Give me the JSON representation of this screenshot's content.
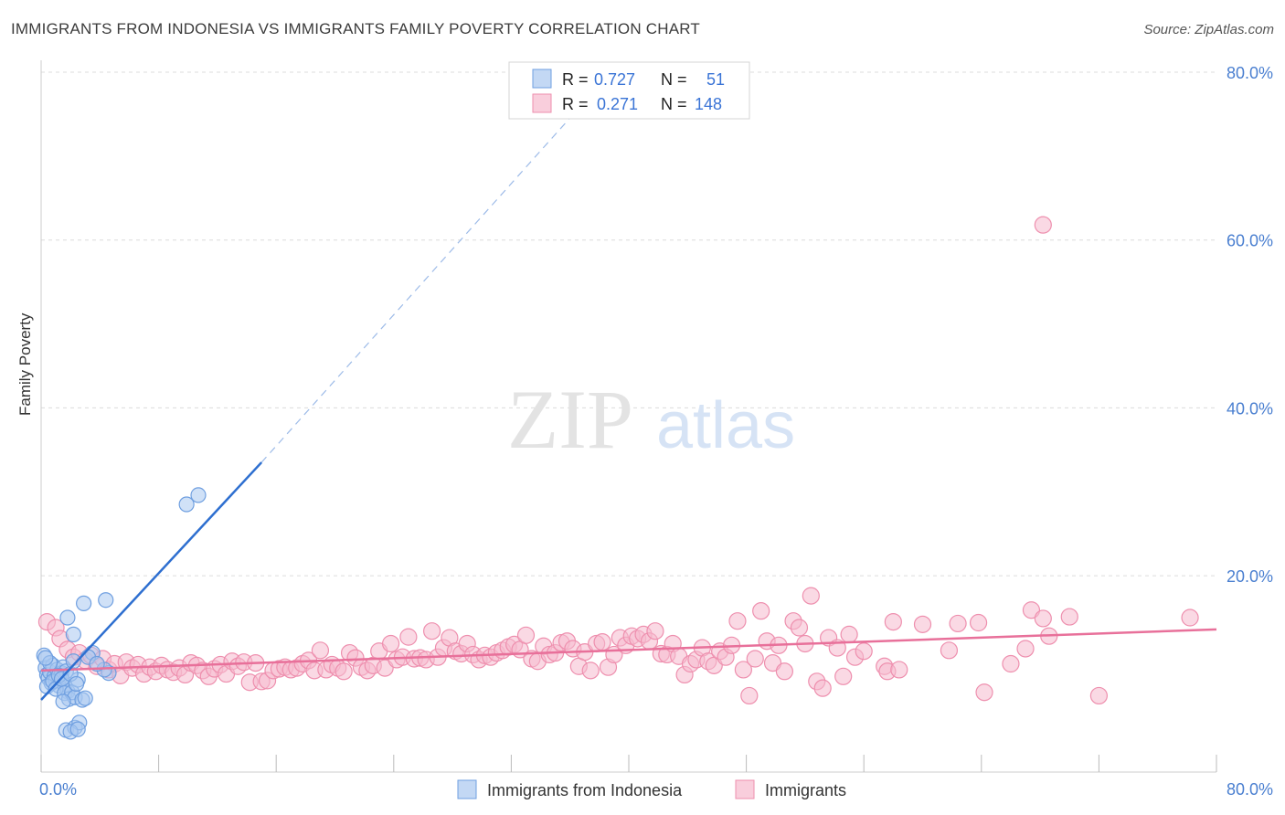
{
  "header": {
    "title": "IMMIGRANTS FROM INDONESIA VS IMMIGRANTS FAMILY POVERTY CORRELATION CHART",
    "source": "Source: ZipAtlas.com"
  },
  "watermark": {
    "zip": "ZIP",
    "atlas": "atlas"
  },
  "colors": {
    "blue_fill": "#a9c8f0",
    "blue_stroke": "#6f9fe0",
    "blue_line": "#2e6fd0",
    "pink_fill": "#f6b9cd",
    "pink_stroke": "#ee8fae",
    "pink_line": "#e8709a",
    "tick_label": "#4a7fd0",
    "grid": "#dcdcdc"
  },
  "legend": {
    "rows": [
      {
        "r_label": "R = ",
        "r_value": "0.727",
        "n_label": "N = ",
        "n_value": "51"
      },
      {
        "r_label": "R = ",
        "r_value": "0.271",
        "n_label": "N = ",
        "n_value": "148"
      }
    ]
  },
  "bottom_legend": [
    "Immigrants from Indonesia",
    "Immigrants"
  ],
  "chart_data": {
    "type": "scatter",
    "title": "IMMIGRANTS FROM INDONESIA VS IMMIGRANTS FAMILY POVERTY CORRELATION CHART",
    "xlabel": "",
    "ylabel": "Family Poverty",
    "xlim": [
      0,
      80
    ],
    "ylim": [
      0,
      80
    ],
    "x_tick_labels": [
      "0.0%",
      "80.0%"
    ],
    "y_ticks": [
      20,
      40,
      60,
      80
    ],
    "y_tick_labels": [
      "20.0%",
      "40.0%",
      "60.0%",
      "80.0%"
    ],
    "grid": true,
    "series": [
      {
        "name": "Immigrants from Indonesia",
        "R": 0.727,
        "N": 51,
        "trend": {
          "solid": [
            [
              0,
              5.2
            ],
            [
              15,
              33.5
            ]
          ],
          "dashed": [
            [
              15,
              33.5
            ],
            [
              37,
              76.5
            ]
          ]
        },
        "points": [
          [
            0.2,
            10.5
          ],
          [
            0.3,
            9.0
          ],
          [
            0.4,
            8.2
          ],
          [
            0.5,
            7.8
          ],
          [
            0.6,
            8.5
          ],
          [
            0.7,
            7.2
          ],
          [
            0.8,
            9.3
          ],
          [
            0.9,
            8.0
          ],
          [
            1.0,
            7.5
          ],
          [
            1.1,
            8.8
          ],
          [
            1.2,
            6.9
          ],
          [
            1.3,
            7.9
          ],
          [
            1.4,
            8.4
          ],
          [
            1.5,
            9.1
          ],
          [
            1.6,
            7.0
          ],
          [
            1.7,
            8.6
          ],
          [
            1.8,
            6.2
          ],
          [
            0.4,
            6.8
          ],
          [
            0.6,
            9.6
          ],
          [
            0.8,
            7.4
          ],
          [
            1.0,
            6.5
          ],
          [
            1.2,
            8.1
          ],
          [
            1.4,
            7.7
          ],
          [
            1.6,
            6.0
          ],
          [
            1.9,
            5.3
          ],
          [
            2.1,
            6.1
          ],
          [
            2.3,
            5.5
          ],
          [
            2.5,
            7.6
          ],
          [
            2.8,
            5.2
          ],
          [
            3.0,
            5.4
          ],
          [
            1.5,
            5.0
          ],
          [
            2.0,
            8.3
          ],
          [
            2.2,
            9.8
          ],
          [
            2.4,
            7.1
          ],
          [
            1.8,
            15.0
          ],
          [
            2.2,
            13.0
          ],
          [
            2.9,
            16.7
          ],
          [
            4.4,
            17.1
          ],
          [
            3.5,
            10.8
          ],
          [
            3.2,
            10.3
          ],
          [
            4.6,
            8.4
          ],
          [
            4.3,
            8.8
          ],
          [
            9.9,
            28.5
          ],
          [
            10.7,
            29.6
          ],
          [
            1.7,
            1.6
          ],
          [
            2.3,
            1.9
          ],
          [
            2.6,
            2.5
          ],
          [
            2.0,
            1.4
          ],
          [
            2.5,
            1.7
          ],
          [
            0.3,
            10.2
          ],
          [
            3.8,
            9.5
          ]
        ]
      },
      {
        "name": "Immigrants",
        "R": 0.271,
        "N": 148,
        "trend": {
          "solid": [
            [
              0,
              8.7
            ],
            [
              80,
              13.6
            ]
          ]
        },
        "points": [
          [
            0.4,
            14.5
          ],
          [
            1.0,
            13.8
          ],
          [
            1.3,
            12.5
          ],
          [
            1.8,
            11.2
          ],
          [
            2.2,
            10.3
          ],
          [
            2.6,
            10.8
          ],
          [
            3.0,
            9.9
          ],
          [
            3.4,
            10.5
          ],
          [
            3.8,
            9.2
          ],
          [
            4.2,
            10.1
          ],
          [
            4.6,
            8.8
          ],
          [
            5.0,
            9.5
          ],
          [
            5.4,
            8.1
          ],
          [
            5.8,
            9.7
          ],
          [
            6.2,
            9.0
          ],
          [
            6.6,
            9.4
          ],
          [
            7.0,
            8.3
          ],
          [
            7.4,
            9.1
          ],
          [
            7.8,
            8.6
          ],
          [
            8.2,
            9.3
          ],
          [
            8.6,
            8.8
          ],
          [
            9.0,
            8.5
          ],
          [
            9.4,
            9.0
          ],
          [
            9.8,
            8.2
          ],
          [
            10.2,
            9.6
          ],
          [
            10.6,
            9.3
          ],
          [
            11.0,
            8.7
          ],
          [
            11.4,
            8.0
          ],
          [
            11.8,
            8.9
          ],
          [
            12.2,
            9.4
          ],
          [
            12.6,
            8.3
          ],
          [
            13.0,
            9.8
          ],
          [
            13.4,
            9.2
          ],
          [
            13.8,
            9.7
          ],
          [
            14.2,
            7.3
          ],
          [
            14.6,
            9.6
          ],
          [
            15.0,
            7.4
          ],
          [
            15.4,
            7.5
          ],
          [
            15.8,
            8.7
          ],
          [
            16.2,
            8.9
          ],
          [
            16.6,
            9.1
          ],
          [
            17.0,
            8.8
          ],
          [
            17.4,
            9.0
          ],
          [
            17.8,
            9.5
          ],
          [
            18.2,
            9.9
          ],
          [
            18.6,
            8.7
          ],
          [
            19.0,
            11.1
          ],
          [
            19.4,
            8.8
          ],
          [
            19.8,
            9.4
          ],
          [
            20.2,
            9.0
          ],
          [
            20.6,
            8.6
          ],
          [
            21.0,
            10.8
          ],
          [
            21.4,
            10.2
          ],
          [
            21.8,
            9.1
          ],
          [
            22.2,
            8.7
          ],
          [
            22.6,
            9.3
          ],
          [
            23.0,
            11.0
          ],
          [
            23.4,
            9.0
          ],
          [
            23.8,
            11.9
          ],
          [
            24.2,
            10.0
          ],
          [
            24.6,
            10.3
          ],
          [
            25.0,
            12.7
          ],
          [
            25.4,
            10.1
          ],
          [
            25.8,
            10.2
          ],
          [
            26.2,
            10.0
          ],
          [
            26.6,
            13.4
          ],
          [
            27.0,
            10.3
          ],
          [
            27.4,
            11.4
          ],
          [
            27.8,
            12.6
          ],
          [
            28.2,
            11.0
          ],
          [
            28.6,
            10.7
          ],
          [
            29.0,
            11.9
          ],
          [
            29.4,
            10.6
          ],
          [
            29.8,
            10.0
          ],
          [
            30.2,
            10.5
          ],
          [
            30.6,
            10.3
          ],
          [
            31.0,
            10.8
          ],
          [
            31.4,
            11.1
          ],
          [
            31.8,
            11.5
          ],
          [
            32.2,
            11.8
          ],
          [
            32.6,
            11.2
          ],
          [
            33.0,
            12.9
          ],
          [
            33.4,
            10.1
          ],
          [
            33.8,
            9.8
          ],
          [
            34.2,
            11.6
          ],
          [
            34.6,
            10.6
          ],
          [
            35.0,
            10.8
          ],
          [
            35.4,
            12.0
          ],
          [
            35.8,
            12.2
          ],
          [
            36.2,
            11.3
          ],
          [
            36.6,
            9.2
          ],
          [
            37.0,
            10.9
          ],
          [
            37.4,
            8.7
          ],
          [
            37.8,
            11.9
          ],
          [
            38.2,
            12.1
          ],
          [
            38.6,
            9.1
          ],
          [
            39.0,
            10.6
          ],
          [
            39.4,
            12.6
          ],
          [
            39.8,
            11.7
          ],
          [
            40.2,
            12.8
          ],
          [
            40.6,
            12.5
          ],
          [
            41.0,
            13.0
          ],
          [
            41.4,
            12.2
          ],
          [
            41.8,
            13.4
          ],
          [
            42.2,
            10.7
          ],
          [
            42.6,
            10.6
          ],
          [
            43.0,
            11.9
          ],
          [
            43.4,
            10.4
          ],
          [
            43.8,
            8.2
          ],
          [
            44.2,
            9.5
          ],
          [
            44.6,
            10.0
          ],
          [
            45.0,
            11.4
          ],
          [
            45.4,
            9.8
          ],
          [
            45.8,
            9.3
          ],
          [
            46.2,
            11.0
          ],
          [
            46.6,
            10.3
          ],
          [
            47.0,
            11.7
          ],
          [
            47.4,
            14.6
          ],
          [
            47.8,
            8.8
          ],
          [
            48.2,
            5.7
          ],
          [
            48.6,
            10.1
          ],
          [
            49.0,
            15.8
          ],
          [
            49.4,
            12.2
          ],
          [
            49.8,
            9.6
          ],
          [
            50.2,
            11.7
          ],
          [
            50.6,
            8.6
          ],
          [
            51.2,
            14.6
          ],
          [
            51.6,
            13.8
          ],
          [
            52.0,
            11.9
          ],
          [
            52.4,
            17.6
          ],
          [
            52.8,
            7.4
          ],
          [
            53.2,
            6.6
          ],
          [
            53.6,
            12.6
          ],
          [
            54.2,
            11.4
          ],
          [
            54.6,
            8.0
          ],
          [
            55.0,
            13.0
          ],
          [
            55.4,
            10.3
          ],
          [
            56.0,
            11.0
          ],
          [
            57.4,
            9.2
          ],
          [
            57.6,
            8.6
          ],
          [
            58.0,
            14.5
          ],
          [
            58.4,
            8.8
          ],
          [
            60.0,
            14.2
          ],
          [
            61.8,
            11.1
          ],
          [
            62.4,
            14.3
          ],
          [
            63.8,
            14.4
          ],
          [
            64.2,
            6.1
          ],
          [
            66.0,
            9.5
          ],
          [
            67.0,
            11.3
          ],
          [
            67.4,
            15.9
          ],
          [
            68.2,
            14.9
          ],
          [
            68.6,
            12.8
          ],
          [
            70.0,
            15.1
          ],
          [
            72.0,
            5.7
          ],
          [
            78.2,
            15.0
          ],
          [
            68.2,
            61.8
          ]
        ]
      }
    ]
  }
}
